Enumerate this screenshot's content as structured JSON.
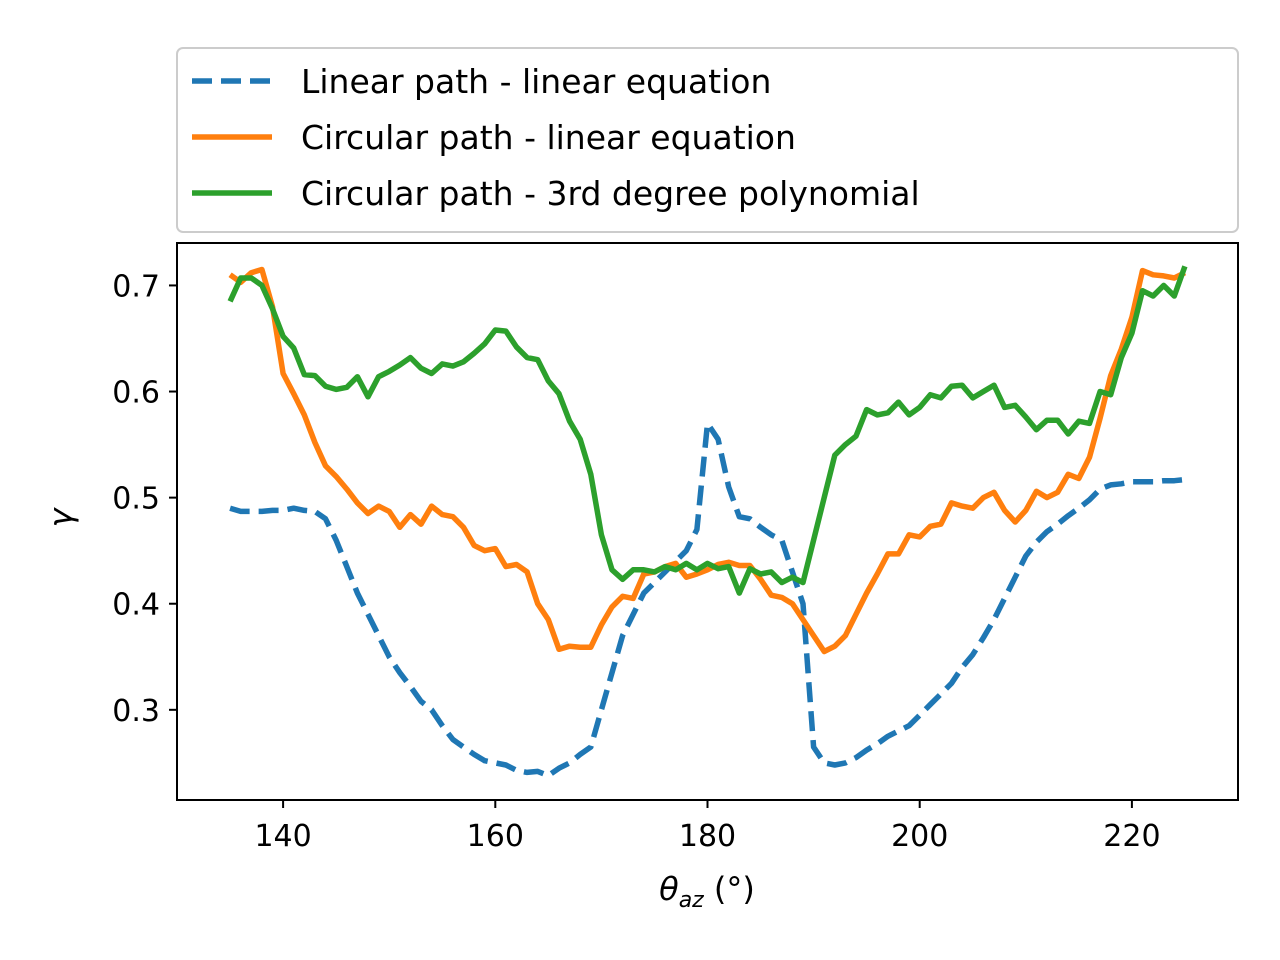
{
  "chart_data": {
    "type": "line",
    "xlabel": "θaz (°)",
    "xlabel_parts": {
      "symbol": "θ",
      "subscript": "az",
      "unit": " (°)"
    },
    "ylabel": "γ",
    "xlim": [
      130,
      230
    ],
    "ylim": [
      0.215,
      0.74
    ],
    "xticks": [
      140,
      160,
      180,
      200,
      220
    ],
    "yticks": [
      0.3,
      0.4,
      0.5,
      0.6,
      0.7
    ],
    "xtick_labels": [
      "140",
      "160",
      "180",
      "200",
      "220"
    ],
    "ytick_labels": [
      "0.3",
      "0.4",
      "0.5",
      "0.6",
      "0.7"
    ],
    "grid": false,
    "legend_position": "above plot",
    "series": [
      {
        "name": "Linear path - linear equation",
        "color": "#1f77b4",
        "style": "dashed",
        "x": [
          135,
          136,
          137,
          138,
          139,
          140,
          141,
          142,
          143,
          144,
          145,
          146,
          147,
          148,
          149,
          150,
          151,
          152,
          153,
          154,
          155,
          156,
          157,
          158,
          159,
          160,
          161,
          162,
          163,
          164,
          165,
          166,
          167,
          168,
          169,
          170,
          171,
          172,
          173,
          174,
          175,
          176,
          177,
          178,
          179,
          180,
          181,
          182,
          183,
          184,
          185,
          186,
          187,
          188,
          189,
          190,
          191,
          192,
          193,
          194,
          195,
          196,
          197,
          198,
          199,
          200,
          201,
          202,
          203,
          204,
          205,
          206,
          207,
          208,
          209,
          210,
          211,
          212,
          213,
          214,
          215,
          216,
          217,
          218,
          219,
          220,
          221,
          222,
          223,
          224,
          225
        ],
        "y": [
          0.49,
          0.487,
          0.487,
          0.487,
          0.488,
          0.488,
          0.49,
          0.488,
          0.487,
          0.48,
          0.46,
          0.435,
          0.41,
          0.39,
          0.37,
          0.35,
          0.335,
          0.322,
          0.308,
          0.3,
          0.285,
          0.272,
          0.265,
          0.258,
          0.252,
          0.25,
          0.248,
          0.243,
          0.241,
          0.242,
          0.238,
          0.245,
          0.25,
          0.258,
          0.265,
          0.3,
          0.335,
          0.37,
          0.39,
          0.41,
          0.42,
          0.43,
          0.44,
          0.45,
          0.47,
          0.57,
          0.555,
          0.51,
          0.482,
          0.48,
          0.472,
          0.465,
          0.46,
          0.43,
          0.4,
          0.265,
          0.25,
          0.248,
          0.25,
          0.255,
          0.262,
          0.268,
          0.275,
          0.28,
          0.285,
          0.295,
          0.305,
          0.315,
          0.325,
          0.34,
          0.352,
          0.368,
          0.385,
          0.405,
          0.425,
          0.445,
          0.458,
          0.468,
          0.475,
          0.483,
          0.49,
          0.498,
          0.508,
          0.512,
          0.513,
          0.515,
          0.515,
          0.515,
          0.516,
          0.516,
          0.517
        ]
      },
      {
        "name": "Circular path - linear equation",
        "color": "#ff7f0e",
        "style": "solid",
        "x": [
          135,
          136,
          137,
          138,
          139,
          140,
          141,
          142,
          143,
          144,
          145,
          146,
          147,
          148,
          149,
          150,
          151,
          152,
          153,
          154,
          155,
          156,
          157,
          158,
          159,
          160,
          161,
          162,
          163,
          164,
          165,
          166,
          167,
          168,
          169,
          170,
          171,
          172,
          173,
          174,
          175,
          176,
          177,
          178,
          179,
          180,
          181,
          182,
          183,
          184,
          185,
          186,
          187,
          188,
          189,
          190,
          191,
          192,
          193,
          194,
          195,
          196,
          197,
          198,
          199,
          200,
          201,
          202,
          203,
          204,
          205,
          206,
          207,
          208,
          209,
          210,
          211,
          212,
          213,
          214,
          215,
          216,
          217,
          218,
          219,
          220,
          221,
          222,
          223,
          224,
          225
        ],
        "y": [
          0.71,
          0.703,
          0.712,
          0.715,
          0.68,
          0.617,
          0.598,
          0.578,
          0.552,
          0.53,
          0.52,
          0.508,
          0.495,
          0.485,
          0.492,
          0.487,
          0.472,
          0.484,
          0.475,
          0.492,
          0.484,
          0.482,
          0.472,
          0.455,
          0.45,
          0.452,
          0.435,
          0.437,
          0.43,
          0.4,
          0.385,
          0.357,
          0.36,
          0.359,
          0.359,
          0.38,
          0.397,
          0.407,
          0.405,
          0.428,
          0.43,
          0.435,
          0.438,
          0.425,
          0.428,
          0.432,
          0.437,
          0.439,
          0.436,
          0.436,
          0.423,
          0.408,
          0.406,
          0.4,
          0.385,
          0.37,
          0.355,
          0.36,
          0.37,
          0.39,
          0.41,
          0.428,
          0.447,
          0.447,
          0.465,
          0.463,
          0.473,
          0.475,
          0.495,
          0.492,
          0.49,
          0.5,
          0.505,
          0.488,
          0.477,
          0.488,
          0.506,
          0.5,
          0.505,
          0.522,
          0.518,
          0.538,
          0.575,
          0.615,
          0.64,
          0.67,
          0.714,
          0.71,
          0.709,
          0.707,
          0.712
        ]
      },
      {
        "name": "Circular path - 3rd degree polynomial",
        "color": "#2ca02c",
        "style": "solid",
        "x": [
          135,
          136,
          137,
          138,
          139,
          140,
          141,
          142,
          143,
          144,
          145,
          146,
          147,
          148,
          149,
          150,
          151,
          152,
          153,
          154,
          155,
          156,
          157,
          158,
          159,
          160,
          161,
          162,
          163,
          164,
          165,
          166,
          167,
          168,
          169,
          170,
          171,
          172,
          173,
          174,
          175,
          176,
          177,
          178,
          179,
          180,
          181,
          182,
          183,
          184,
          185,
          186,
          187,
          188,
          189,
          190,
          191,
          192,
          193,
          194,
          195,
          196,
          197,
          198,
          199,
          200,
          201,
          202,
          203,
          204,
          205,
          206,
          207,
          208,
          209,
          210,
          211,
          212,
          213,
          214,
          215,
          216,
          217,
          218,
          219,
          220,
          221,
          222,
          223,
          224,
          225
        ],
        "y": [
          0.685,
          0.707,
          0.707,
          0.7,
          0.678,
          0.652,
          0.641,
          0.616,
          0.615,
          0.605,
          0.602,
          0.604,
          0.614,
          0.595,
          0.614,
          0.619,
          0.625,
          0.632,
          0.622,
          0.617,
          0.626,
          0.624,
          0.628,
          0.636,
          0.645,
          0.658,
          0.657,
          0.642,
          0.632,
          0.63,
          0.61,
          0.598,
          0.572,
          0.555,
          0.522,
          0.465,
          0.432,
          0.423,
          0.432,
          0.432,
          0.43,
          0.435,
          0.432,
          0.438,
          0.432,
          0.438,
          0.433,
          0.435,
          0.41,
          0.433,
          0.428,
          0.43,
          0.42,
          0.425,
          0.42,
          0.46,
          0.5,
          0.54,
          0.55,
          0.558,
          0.583,
          0.578,
          0.58,
          0.59,
          0.578,
          0.585,
          0.597,
          0.594,
          0.605,
          0.606,
          0.594,
          0.6,
          0.606,
          0.585,
          0.587,
          0.576,
          0.564,
          0.573,
          0.573,
          0.56,
          0.572,
          0.57,
          0.6,
          0.597,
          0.632,
          0.655,
          0.695,
          0.69,
          0.7,
          0.69,
          0.718
        ]
      }
    ]
  }
}
